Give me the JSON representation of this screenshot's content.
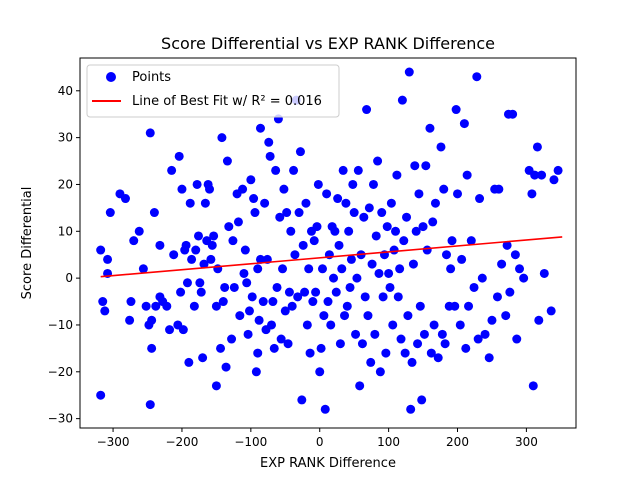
{
  "chart_data": {
    "type": "scatter",
    "title": "Score Differential vs EXP RANK Difference",
    "xlabel": "EXP RANK Difference",
    "ylabel": "Score Differential",
    "xlim": [
      -348,
      372
    ],
    "ylim": [
      -32,
      47
    ],
    "xticks": [
      -300,
      -200,
      -100,
      0,
      100,
      200,
      300
    ],
    "yticks": [
      -30,
      -20,
      -10,
      0,
      10,
      20,
      30,
      40
    ],
    "legend": {
      "placement": "top-left",
      "entries": [
        {
          "label": "Points",
          "marker": "circle",
          "color": "#0000ff"
        },
        {
          "label": "Line of Best Fit w/ R² = 0.016",
          "marker": "line",
          "color": "#ff0000"
        }
      ]
    },
    "series": [
      {
        "name": "Points",
        "color": "#0000ff",
        "points": [
          [
            -318,
            -25
          ],
          [
            -318,
            6
          ],
          [
            -315,
            -5
          ],
          [
            -312,
            -7
          ],
          [
            -308,
            4
          ],
          [
            -308,
            1
          ],
          [
            -304,
            14
          ],
          [
            -290,
            18
          ],
          [
            -282,
            17
          ],
          [
            -276,
            -9
          ],
          [
            -274,
            -5
          ],
          [
            -270,
            8
          ],
          [
            -262,
            10
          ],
          [
            -256,
            2
          ],
          [
            -252,
            -6
          ],
          [
            -248,
            -10
          ],
          [
            -246,
            31
          ],
          [
            -246,
            -27
          ],
          [
            -244,
            -9
          ],
          [
            -244,
            -15
          ],
          [
            -240,
            14
          ],
          [
            -238,
            -6
          ],
          [
            -232,
            -4
          ],
          [
            -232,
            7
          ],
          [
            -228,
            -5
          ],
          [
            -222,
            -6
          ],
          [
            -218,
            -11
          ],
          [
            -215,
            23
          ],
          [
            -212,
            5
          ],
          [
            -206,
            -10
          ],
          [
            -204,
            26
          ],
          [
            -202,
            -3
          ],
          [
            -200,
            19
          ],
          [
            -198,
            -11
          ],
          [
            -196,
            6
          ],
          [
            -194,
            7
          ],
          [
            -192,
            -1
          ],
          [
            -190,
            -18
          ],
          [
            -188,
            16
          ],
          [
            -186,
            4
          ],
          [
            -182,
            -6
          ],
          [
            -180,
            6
          ],
          [
            -178,
            20
          ],
          [
            -176,
            9
          ],
          [
            -174,
            -1
          ],
          [
            -172,
            -3
          ],
          [
            -170,
            -17
          ],
          [
            -168,
            3
          ],
          [
            -166,
            16
          ],
          [
            -164,
            8
          ],
          [
            -162,
            20
          ],
          [
            -160,
            19
          ],
          [
            -158,
            4
          ],
          [
            -156,
            7
          ],
          [
            -154,
            9
          ],
          [
            -150,
            -23
          ],
          [
            -150,
            -6
          ],
          [
            -148,
            2
          ],
          [
            -144,
            -15
          ],
          [
            -142,
            30
          ],
          [
            -140,
            -5
          ],
          [
            -138,
            -2
          ],
          [
            -136,
            -19
          ],
          [
            -134,
            25
          ],
          [
            -132,
            11
          ],
          [
            -128,
            -13
          ],
          [
            -126,
            8
          ],
          [
            -124,
            -2
          ],
          [
            -120,
            18
          ],
          [
            -118,
            12
          ],
          [
            -116,
            -8
          ],
          [
            -112,
            19
          ],
          [
            -110,
            1
          ],
          [
            -108,
            6
          ],
          [
            -106,
            -1
          ],
          [
            -104,
            -12
          ],
          [
            -102,
            -7
          ],
          [
            -100,
            21
          ],
          [
            -98,
            -4
          ],
          [
            -96,
            17
          ],
          [
            -94,
            14
          ],
          [
            -92,
            -20
          ],
          [
            -90,
            -16
          ],
          [
            -90,
            2
          ],
          [
            -88,
            -9
          ],
          [
            -86,
            4
          ],
          [
            -86,
            32
          ],
          [
            -82,
            -5
          ],
          [
            -80,
            16
          ],
          [
            -78,
            -11
          ],
          [
            -76,
            4
          ],
          [
            -74,
            29
          ],
          [
            -72,
            26
          ],
          [
            -70,
            -10
          ],
          [
            -68,
            -5
          ],
          [
            -66,
            -15
          ],
          [
            -64,
            23
          ],
          [
            -62,
            -2
          ],
          [
            -60,
            34
          ],
          [
            -58,
            13
          ],
          [
            -56,
            -13
          ],
          [
            -54,
            2
          ],
          [
            -52,
            19
          ],
          [
            -50,
            -7
          ],
          [
            -48,
            14
          ],
          [
            -46,
            -14
          ],
          [
            -44,
            -3
          ],
          [
            -42,
            10
          ],
          [
            -40,
            -6
          ],
          [
            -38,
            23
          ],
          [
            -36,
            5
          ],
          [
            -34,
            38
          ],
          [
            -32,
            -4
          ],
          [
            -30,
            14
          ],
          [
            -28,
            27
          ],
          [
            -26,
            -26
          ],
          [
            -24,
            7
          ],
          [
            -22,
            -3
          ],
          [
            -20,
            16
          ],
          [
            -18,
            -10
          ],
          [
            -16,
            2
          ],
          [
            -14,
            -16
          ],
          [
            -12,
            10
          ],
          [
            -10,
            -5
          ],
          [
            -8,
            8
          ],
          [
            -6,
            -3
          ],
          [
            -4,
            11
          ],
          [
            -2,
            20
          ],
          [
            0,
            -20
          ],
          [
            2,
            -15
          ],
          [
            4,
            2
          ],
          [
            6,
            -8
          ],
          [
            8,
            -28
          ],
          [
            10,
            18
          ],
          [
            12,
            -5
          ],
          [
            14,
            5
          ],
          [
            16,
            -10
          ],
          [
            18,
            11
          ],
          [
            20,
            0
          ],
          [
            22,
            10
          ],
          [
            24,
            -3
          ],
          [
            26,
            17
          ],
          [
            28,
            7
          ],
          [
            30,
            -14
          ],
          [
            32,
            2
          ],
          [
            34,
            23
          ],
          [
            36,
            -8
          ],
          [
            38,
            16
          ],
          [
            40,
            -6
          ],
          [
            42,
            10
          ],
          [
            44,
            -2
          ],
          [
            46,
            4
          ],
          [
            48,
            20
          ],
          [
            50,
            14
          ],
          [
            52,
            -12
          ],
          [
            54,
            0
          ],
          [
            56,
            23
          ],
          [
            58,
            -23
          ],
          [
            60,
            5
          ],
          [
            62,
            -14
          ],
          [
            64,
            13
          ],
          [
            66,
            -4
          ],
          [
            68,
            36
          ],
          [
            70,
            -8
          ],
          [
            72,
            15
          ],
          [
            74,
            -18
          ],
          [
            76,
            3
          ],
          [
            78,
            20
          ],
          [
            80,
            -12
          ],
          [
            82,
            9
          ],
          [
            84,
            25
          ],
          [
            86,
            1
          ],
          [
            88,
            -20
          ],
          [
            90,
            14
          ],
          [
            92,
            -4
          ],
          [
            94,
            5
          ],
          [
            96,
            -16
          ],
          [
            98,
            11
          ],
          [
            100,
            1
          ],
          [
            102,
            -2
          ],
          [
            104,
            16
          ],
          [
            106,
            -10
          ],
          [
            108,
            6
          ],
          [
            110,
            10
          ],
          [
            112,
            22
          ],
          [
            114,
            -4
          ],
          [
            116,
            2
          ],
          [
            118,
            -13
          ],
          [
            120,
            38
          ],
          [
            122,
            8
          ],
          [
            124,
            -16
          ],
          [
            126,
            13
          ],
          [
            128,
            -8
          ],
          [
            130,
            44
          ],
          [
            132,
            -28
          ],
          [
            134,
            -18
          ],
          [
            136,
            3
          ],
          [
            138,
            24
          ],
          [
            140,
            10
          ],
          [
            142,
            -14
          ],
          [
            144,
            18
          ],
          [
            146,
            -6
          ],
          [
            148,
            -26
          ],
          [
            150,
            11
          ],
          [
            152,
            -12
          ],
          [
            154,
            24
          ],
          [
            156,
            6
          ],
          [
            160,
            32
          ],
          [
            162,
            -16
          ],
          [
            164,
            12
          ],
          [
            166,
            -10
          ],
          [
            168,
            16
          ],
          [
            172,
            -17
          ],
          [
            176,
            28
          ],
          [
            178,
            -12
          ],
          [
            180,
            19
          ],
          [
            182,
            -14
          ],
          [
            184,
            5
          ],
          [
            188,
            -6
          ],
          [
            190,
            2
          ],
          [
            192,
            8
          ],
          [
            196,
            -6
          ],
          [
            198,
            36
          ],
          [
            200,
            18
          ],
          [
            204,
            -10
          ],
          [
            206,
            4
          ],
          [
            210,
            33
          ],
          [
            212,
            -15
          ],
          [
            214,
            22
          ],
          [
            216,
            -6
          ],
          [
            220,
            8
          ],
          [
            224,
            -2
          ],
          [
            228,
            43
          ],
          [
            230,
            -13
          ],
          [
            232,
            17
          ],
          [
            236,
            0
          ],
          [
            240,
            -12
          ],
          [
            246,
            -17
          ],
          [
            250,
            -9
          ],
          [
            254,
            19
          ],
          [
            258,
            -4
          ],
          [
            260,
            19
          ],
          [
            264,
            3
          ],
          [
            270,
            -8
          ],
          [
            272,
            7
          ],
          [
            274,
            35
          ],
          [
            276,
            -3
          ],
          [
            280,
            35
          ],
          [
            284,
            5
          ],
          [
            286,
            -13
          ],
          [
            290,
            2
          ],
          [
            296,
            0
          ],
          [
            304,
            23
          ],
          [
            308,
            18
          ],
          [
            310,
            -23
          ],
          [
            312,
            22
          ],
          [
            316,
            28
          ],
          [
            318,
            -9
          ],
          [
            322,
            22
          ],
          [
            326,
            1
          ],
          [
            336,
            -7
          ],
          [
            340,
            21
          ],
          [
            346,
            23
          ]
        ]
      },
      {
        "name": "Line of Best Fit w/ R² = 0.016",
        "color": "#ff0000",
        "x": [
          -318,
          352
        ],
        "y": [
          0.3,
          8.8
        ]
      }
    ]
  }
}
